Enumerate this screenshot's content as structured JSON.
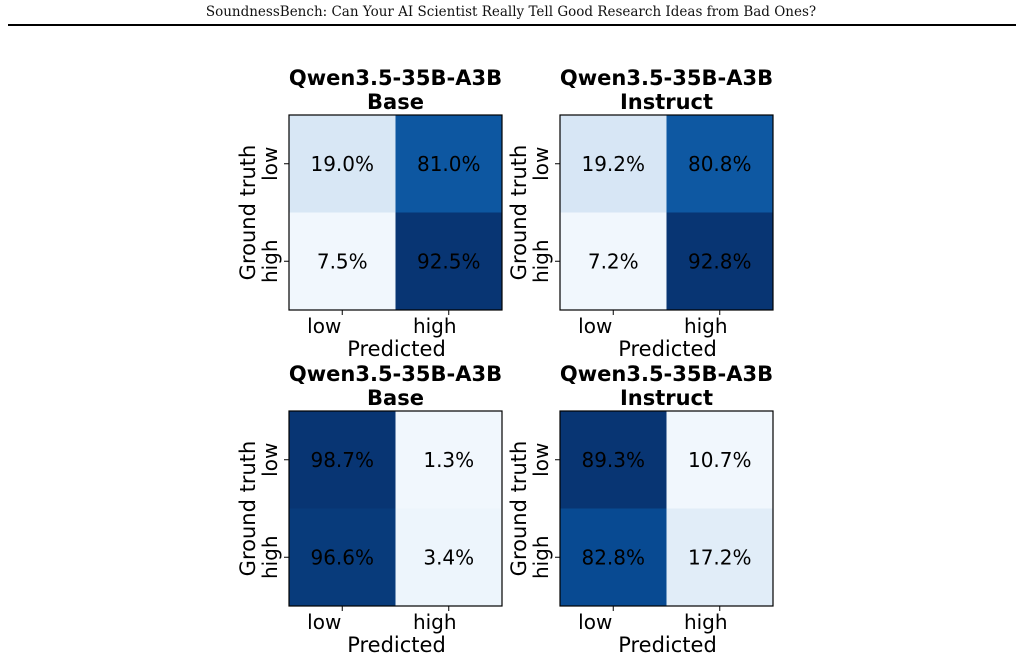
{
  "page_header": "SoundnessBench: Can Your AI Scientist Really Tell Good Research Ideas from Bad Ones?",
  "chart_data": [
    {
      "type": "heatmap",
      "title_lines": [
        "Qwen3.5-35B-A3B",
        "Base"
      ],
      "xlabel": "Predicted",
      "ylabel": "Ground truth",
      "x_ticks": [
        "low",
        "high"
      ],
      "y_ticks": [
        "low",
        "high"
      ],
      "values": [
        [
          19.0,
          81.0
        ],
        [
          7.5,
          92.5
        ]
      ],
      "labels": [
        [
          "19.0%",
          "81.0%"
        ],
        [
          "7.5%",
          "92.5%"
        ]
      ],
      "colormap": "Blues"
    },
    {
      "type": "heatmap",
      "title_lines": [
        "Qwen3.5-35B-A3B",
        "Instruct"
      ],
      "xlabel": "Predicted",
      "ylabel": "Ground truth",
      "x_ticks": [
        "low",
        "high"
      ],
      "y_ticks": [
        "low",
        "high"
      ],
      "values": [
        [
          19.2,
          80.8
        ],
        [
          7.2,
          92.8
        ]
      ],
      "labels": [
        [
          "19.2%",
          "80.8%"
        ],
        [
          "7.2%",
          "92.8%"
        ]
      ],
      "colormap": "Blues"
    },
    {
      "type": "heatmap",
      "title_lines": [
        "Qwen3.5-35B-A3B",
        "Base"
      ],
      "xlabel": "Predicted",
      "ylabel": "Ground truth",
      "x_ticks": [
        "low",
        "high"
      ],
      "y_ticks": [
        "low",
        "high"
      ],
      "values": [
        [
          98.7,
          1.3
        ],
        [
          96.6,
          3.4
        ]
      ],
      "labels": [
        [
          "98.7%",
          "1.3%"
        ],
        [
          "96.6%",
          "3.4%"
        ]
      ],
      "colormap": "Blues"
    },
    {
      "type": "heatmap",
      "title_lines": [
        "Qwen3.5-35B-A3B",
        "Instruct"
      ],
      "xlabel": "Predicted",
      "ylabel": "Ground truth",
      "x_ticks": [
        "low",
        "high"
      ],
      "y_ticks": [
        "low",
        "high"
      ],
      "values": [
        [
          89.3,
          10.7
        ],
        [
          82.8,
          17.2
        ]
      ],
      "labels": [
        [
          "89.3%",
          "10.7%"
        ],
        [
          "82.8%",
          "17.2%"
        ]
      ],
      "colormap": "Blues"
    }
  ]
}
